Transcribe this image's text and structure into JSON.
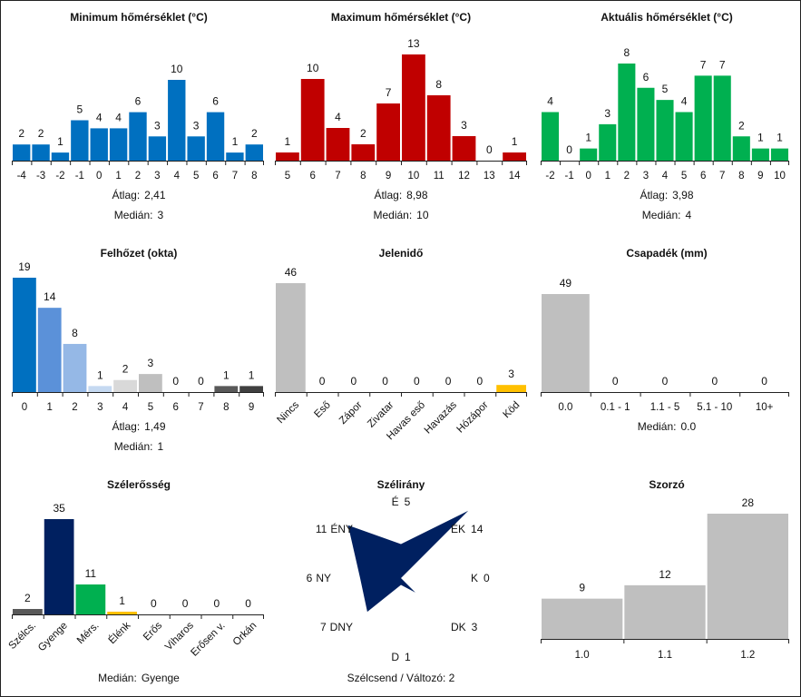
{
  "chart_data": [
    {
      "id": "min-temp",
      "type": "bar",
      "title": "Minimum hőmérséklet (°C)",
      "categories": [
        "-4",
        "-3",
        "-2",
        "-1",
        "0",
        "1",
        "2",
        "3",
        "4",
        "5",
        "6",
        "7",
        "8"
      ],
      "values": [
        2,
        2,
        1,
        5,
        4,
        4,
        6,
        3,
        10,
        3,
        6,
        1,
        2
      ],
      "colors": [
        "#0070c0"
      ],
      "ylim": [
        0,
        10
      ],
      "stats": [
        {
          "label": "Átlag:",
          "value": "2,41"
        },
        {
          "label": "Medián:",
          "value": "3"
        }
      ]
    },
    {
      "id": "max-temp",
      "type": "bar",
      "title": "Maximum hőmérséklet (°C)",
      "categories": [
        "5",
        "6",
        "7",
        "8",
        "9",
        "10",
        "11",
        "12",
        "13",
        "14"
      ],
      "values": [
        1,
        10,
        4,
        2,
        7,
        13,
        8,
        3,
        0,
        1
      ],
      "colors": [
        "#c00000"
      ],
      "ylim": [
        0,
        13
      ],
      "stats": [
        {
          "label": "Átlag:",
          "value": "8,98"
        },
        {
          "label": "Medián:",
          "value": "10"
        }
      ]
    },
    {
      "id": "cur-temp",
      "type": "bar",
      "title": "Aktuális hőmérséklet (°C)",
      "categories": [
        "-2",
        "-1",
        "0",
        "1",
        "2",
        "3",
        "4",
        "5",
        "6",
        "7",
        "8",
        "9",
        "10"
      ],
      "values": [
        4,
        0,
        1,
        3,
        8,
        6,
        5,
        4,
        7,
        7,
        2,
        1,
        1
      ],
      "colors": [
        "#00b050"
      ],
      "ylim": [
        0,
        8
      ],
      "stats": [
        {
          "label": "Átlag:",
          "value": "3,98"
        },
        {
          "label": "Medián:",
          "value": "4"
        }
      ]
    },
    {
      "id": "cloud",
      "type": "bar",
      "title": "Felhőzet (okta)",
      "categories": [
        "0",
        "1",
        "2",
        "3",
        "4",
        "5",
        "6",
        "7",
        "8",
        "9"
      ],
      "values": [
        19,
        14,
        8,
        1,
        2,
        3,
        0,
        0,
        1,
        1
      ],
      "colors": [
        "#0070c0",
        "#5b91d9",
        "#95b8e6",
        "#c5d9f1",
        "#d9d9d9",
        "#bfbfbf",
        "#bfbfbf",
        "#bfbfbf",
        "#595959",
        "#404040"
      ],
      "ylim": [
        0,
        19
      ],
      "stats": [
        {
          "label": "Átlag:",
          "value": "1,49"
        },
        {
          "label": "Medián:",
          "value": "1"
        }
      ]
    },
    {
      "id": "weather",
      "type": "bar",
      "title": "Jelenidő",
      "categories": [
        "Nincs",
        "Eső",
        "Zápor",
        "Zivatar",
        "Havas eső",
        "Havazás",
        "Hózápor",
        "Köd"
      ],
      "values": [
        46,
        0,
        0,
        0,
        0,
        0,
        0,
        3
      ],
      "colors": [
        "#bfbfbf",
        "#bfbfbf",
        "#bfbfbf",
        "#bfbfbf",
        "#bfbfbf",
        "#bfbfbf",
        "#bfbfbf",
        "#ffc000"
      ],
      "ylim": [
        0,
        46
      ],
      "rotate_labels": true,
      "stats": []
    },
    {
      "id": "precip",
      "type": "bar",
      "title": "Csapadék (mm)",
      "categories": [
        "0.0",
        "0.1 - 1",
        "1.1 - 5",
        "5.1 - 10",
        "10+"
      ],
      "values": [
        49,
        0,
        0,
        0,
        0
      ],
      "colors": [
        "#bfbfbf"
      ],
      "ylim": [
        0,
        49
      ],
      "stats": [
        {
          "label": "Medián:",
          "value": "0.0"
        }
      ]
    },
    {
      "id": "wind-strength",
      "type": "bar",
      "title": "Szélerősség",
      "categories": [
        "Szélcs.",
        "Gyenge",
        "Mérs.",
        "Élénk",
        "Erős",
        "Viharos",
        "Erősen v.",
        "Orkán"
      ],
      "values": [
        2,
        35,
        11,
        1,
        0,
        0,
        0,
        0
      ],
      "colors": [
        "#595959",
        "#002060",
        "#00b050",
        "#ffc000",
        "#bfbfbf",
        "#bfbfbf",
        "#bfbfbf",
        "#bfbfbf"
      ],
      "ylim": [
        0,
        35
      ],
      "rotate_labels": true,
      "stats": [
        {
          "label": "Medián:",
          "value": "Gyenge"
        }
      ]
    },
    {
      "id": "wind-dir",
      "type": "radar",
      "title": "Szélirány",
      "directions": [
        {
          "label": "É",
          "value": 5
        },
        {
          "label": "ÉK",
          "value": 14
        },
        {
          "label": "K",
          "value": 0
        },
        {
          "label": "DK",
          "value": 3
        },
        {
          "label": "D",
          "value": 1
        },
        {
          "label": "DNY",
          "value": 7
        },
        {
          "label": "NY",
          "value": 6
        },
        {
          "label": "ÉNY",
          "value": 11
        }
      ],
      "color": "#002060",
      "footer": "Szélcsend / Változó: 2"
    },
    {
      "id": "multiplier",
      "type": "bar",
      "title": "Szorzó",
      "categories": [
        "1.0",
        "1.1",
        "1.2"
      ],
      "values": [
        9,
        12,
        28
      ],
      "colors": [
        "#bfbfbf"
      ],
      "ylim": [
        0,
        28
      ],
      "stats": []
    }
  ]
}
